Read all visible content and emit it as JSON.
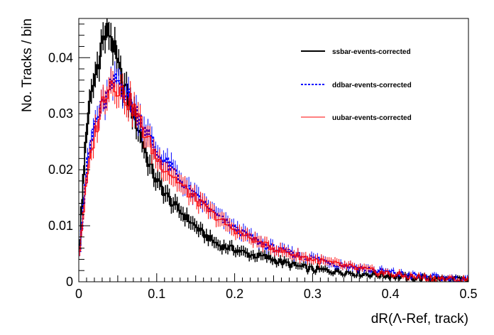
{
  "chart_data": {
    "type": "line",
    "xlabel": "dR(Λ-Ref, track)",
    "ylabel": "No. Tracks / bin",
    "xlim": [
      0,
      0.5
    ],
    "ylim": [
      0,
      0.047
    ],
    "x_ticks": [
      "0",
      "0.1",
      "0.2",
      "0.3",
      "0.4",
      "0.5"
    ],
    "y_ticks": [
      "0",
      "0.01",
      "0.02",
      "0.03",
      "0.04"
    ],
    "grid": false,
    "legend_position": "top-right",
    "bin_width": 0.0025,
    "series": [
      {
        "name": "ssbar-events-corrected",
        "color": "#000000",
        "style": "solid",
        "x": [
          0.0,
          0.01,
          0.02,
          0.03,
          0.04,
          0.05,
          0.06,
          0.07,
          0.08,
          0.09,
          0.1,
          0.12,
          0.14,
          0.16,
          0.18,
          0.2,
          0.22,
          0.24,
          0.26,
          0.28,
          0.3,
          0.32,
          0.34,
          0.36,
          0.38,
          0.4,
          0.42,
          0.44,
          0.46,
          0.48,
          0.5
        ],
        "y": [
          0.004,
          0.028,
          0.036,
          0.043,
          0.045,
          0.038,
          0.034,
          0.03,
          0.026,
          0.021,
          0.018,
          0.014,
          0.0112,
          0.0085,
          0.0065,
          0.0058,
          0.0048,
          0.0044,
          0.0035,
          0.0028,
          0.0022,
          0.002,
          0.0018,
          0.0015,
          0.0013,
          0.0011,
          0.0008,
          0.0007,
          0.0006,
          0.0004,
          0.0003
        ]
      },
      {
        "name": "ddbar-events-corrected",
        "color": "#0000ff",
        "style": "dashed",
        "x": [
          0.0,
          0.01,
          0.02,
          0.03,
          0.04,
          0.05,
          0.06,
          0.07,
          0.08,
          0.09,
          0.1,
          0.12,
          0.14,
          0.16,
          0.18,
          0.2,
          0.22,
          0.24,
          0.26,
          0.28,
          0.3,
          0.32,
          0.34,
          0.36,
          0.38,
          0.4,
          0.42,
          0.44,
          0.46,
          0.48,
          0.5
        ],
        "y": [
          0.004,
          0.02,
          0.028,
          0.031,
          0.034,
          0.036,
          0.034,
          0.031,
          0.029,
          0.026,
          0.023,
          0.02,
          0.0165,
          0.014,
          0.0115,
          0.0095,
          0.008,
          0.0065,
          0.0055,
          0.0048,
          0.0042,
          0.0036,
          0.003,
          0.0025,
          0.002,
          0.0016,
          0.0012,
          0.0009,
          0.0007,
          0.0005,
          0.0004
        ]
      },
      {
        "name": "uubar-events-corrected",
        "color": "#ff0000",
        "style": "solid",
        "x": [
          0.0,
          0.01,
          0.02,
          0.03,
          0.04,
          0.05,
          0.06,
          0.07,
          0.08,
          0.09,
          0.1,
          0.12,
          0.14,
          0.16,
          0.18,
          0.2,
          0.22,
          0.24,
          0.26,
          0.28,
          0.3,
          0.32,
          0.34,
          0.36,
          0.38,
          0.4,
          0.42,
          0.44,
          0.46,
          0.48,
          0.5
        ],
        "y": [
          0.004,
          0.018,
          0.026,
          0.032,
          0.036,
          0.035,
          0.033,
          0.031,
          0.028,
          0.025,
          0.022,
          0.019,
          0.016,
          0.0135,
          0.0112,
          0.0092,
          0.0078,
          0.0065,
          0.0055,
          0.0047,
          0.004,
          0.0034,
          0.0028,
          0.0023,
          0.0018,
          0.0014,
          0.001,
          0.0008,
          0.0006,
          0.0004,
          0.0003
        ]
      }
    ]
  }
}
